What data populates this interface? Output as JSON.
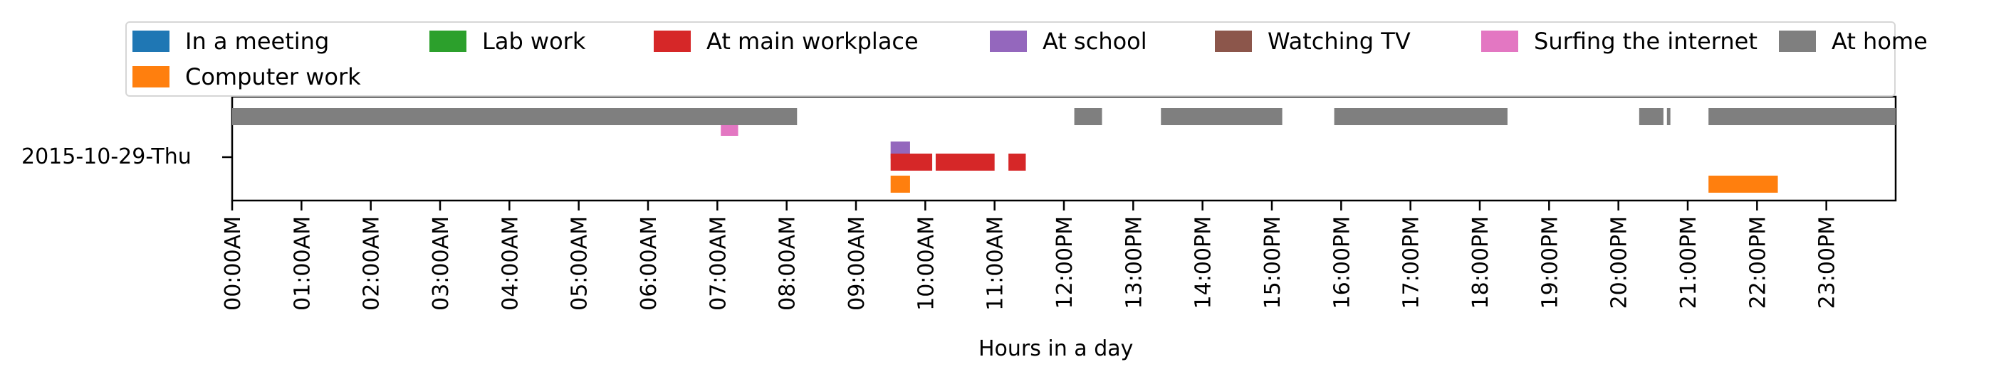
{
  "chart_data": {
    "type": "timeline",
    "xlabel": "Hours in a day",
    "row_label": "2015-10-29-Thu",
    "x_ticks": [
      "00:00AM",
      "01:00AM",
      "02:00AM",
      "03:00AM",
      "04:00AM",
      "05:00AM",
      "06:00AM",
      "07:00AM",
      "08:00AM",
      "09:00AM",
      "10:00AM",
      "11:00AM",
      "12:00PM",
      "13:00PM",
      "14:00PM",
      "15:00PM",
      "16:00PM",
      "17:00PM",
      "18:00PM",
      "19:00PM",
      "20:00PM",
      "21:00PM",
      "22:00PM",
      "23:00PM"
    ],
    "xlim_hours": [
      0,
      24
    ],
    "legend": [
      {
        "name": "In a meeting",
        "color": "#1f77b4"
      },
      {
        "name": "Lab work",
        "color": "#2ca02c"
      },
      {
        "name": "At main workplace",
        "color": "#d62728"
      },
      {
        "name": "At school",
        "color": "#9467bd"
      },
      {
        "name": "Watching TV",
        "color": "#8c564b"
      },
      {
        "name": "Surfing the internet",
        "color": "#e377c2"
      },
      {
        "name": "At home",
        "color": "#7f7f7f"
      },
      {
        "name": "Computer work",
        "color": "#ff7f0e"
      }
    ],
    "series": [
      {
        "name": "At home",
        "intervals": [
          [
            0.0,
            8.15
          ],
          [
            12.15,
            12.55
          ],
          [
            13.4,
            15.15
          ],
          [
            15.9,
            18.4
          ],
          [
            20.3,
            20.65
          ],
          [
            20.7,
            20.75
          ],
          [
            21.3,
            24.0
          ]
        ]
      },
      {
        "name": "Surfing the internet",
        "intervals": [
          [
            7.05,
            7.3
          ]
        ]
      },
      {
        "name": "At school",
        "intervals": [
          [
            9.5,
            9.78
          ]
        ]
      },
      {
        "name": "At main workplace",
        "intervals": [
          [
            9.5,
            10.1
          ],
          [
            10.15,
            11.0
          ],
          [
            11.2,
            11.45
          ]
        ]
      },
      {
        "name": "Computer work",
        "intervals": [
          [
            9.5,
            9.78
          ],
          [
            21.3,
            22.3
          ]
        ]
      }
    ]
  }
}
